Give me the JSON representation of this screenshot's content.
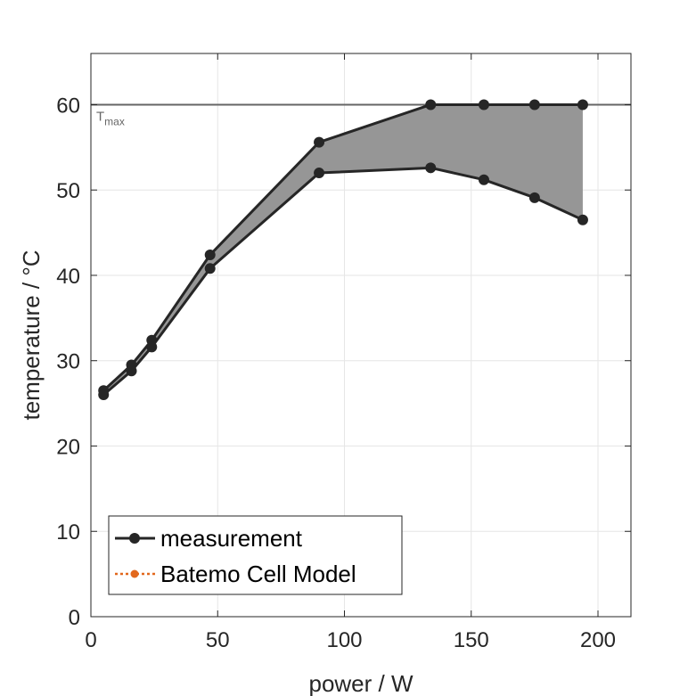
{
  "chart_data": {
    "type": "line",
    "xlabel": "power / W",
    "ylabel": "temperature / °C",
    "xlim": [
      0,
      213
    ],
    "ylim": [
      0,
      66
    ],
    "x_ticks": [
      0,
      50,
      100,
      150,
      200
    ],
    "y_ticks": [
      0,
      10,
      20,
      30,
      40,
      50,
      60
    ],
    "grid": true,
    "legend_position": "bottom-left",
    "series": [
      {
        "name": "measurement",
        "color": "#262626",
        "style": "solid",
        "marker": "circle",
        "role": "upper",
        "x": [
          5,
          16,
          24,
          47,
          90,
          134,
          155,
          175,
          194
        ],
        "y": [
          26.5,
          29.5,
          32.4,
          42.4,
          55.6,
          60,
          60,
          60,
          60
        ]
      },
      {
        "name": "measurement",
        "color": "#262626",
        "style": "solid",
        "marker": "circle",
        "role": "lower",
        "x": [
          5,
          16,
          24,
          47,
          90,
          134,
          155,
          175,
          194
        ],
        "y": [
          26.0,
          28.8,
          31.6,
          40.8,
          52.0,
          52.6,
          51.2,
          49.1,
          46.5
        ]
      }
    ],
    "band_fill_color": "#969696",
    "reference_line": {
      "y": 60,
      "label": "T",
      "label_sub": "max",
      "color": "#666666"
    },
    "legend": [
      {
        "label": "measurement",
        "color": "#262626",
        "style": "solid",
        "marker": "circle"
      },
      {
        "label": "Batemo Cell Model",
        "color": "#e2681d",
        "style": "dotted",
        "marker": "circle"
      }
    ]
  }
}
